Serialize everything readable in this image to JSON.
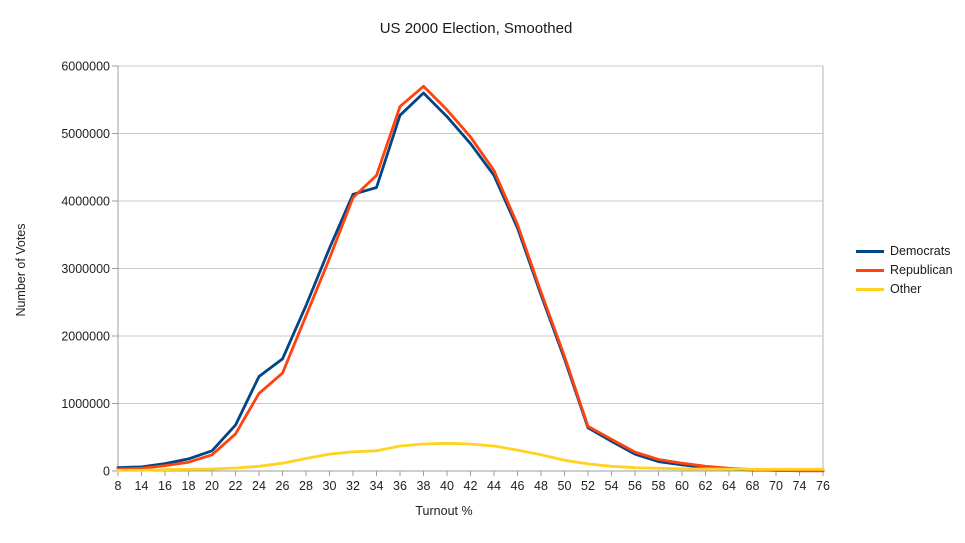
{
  "title": "US 2000 Election, Smoothed",
  "colors": {
    "democrats": "#004586",
    "republican": "#FF420E",
    "other": "#FFD320",
    "gridline": "#c9c9c9",
    "plot_border": "#b3b3b3",
    "axis": "#9e9e9e",
    "tick_text": "#222222",
    "background": "#ffffff"
  },
  "chart_data": {
    "type": "line",
    "title": "US 2000 Election, Smoothed",
    "xlabel": "Turnout %",
    "ylabel": "Number of Votes",
    "ylim": [
      0,
      6000000
    ],
    "y_ticks": [
      0,
      1000000,
      2000000,
      3000000,
      4000000,
      5000000,
      6000000
    ],
    "grid": "horizontal",
    "legend_position": "right",
    "categories": [
      8,
      14,
      16,
      18,
      20,
      22,
      24,
      26,
      28,
      30,
      32,
      34,
      36,
      38,
      40,
      42,
      44,
      46,
      48,
      50,
      52,
      54,
      56,
      58,
      60,
      62,
      64,
      68,
      70,
      74,
      76
    ],
    "series": [
      {
        "name": "Democrats",
        "color": "#004586",
        "values": [
          50000,
          60000,
          110000,
          180000,
          300000,
          680000,
          1400000,
          1660000,
          2450000,
          3300000,
          4100000,
          4200000,
          5270000,
          5600000,
          5250000,
          4850000,
          4380000,
          3600000,
          2610000,
          1660000,
          640000,
          440000,
          250000,
          140000,
          90000,
          50000,
          30000,
          15000,
          10000,
          5000,
          5000
        ]
      },
      {
        "name": "Republican",
        "color": "#FF420E",
        "values": [
          30000,
          40000,
          80000,
          130000,
          240000,
          550000,
          1150000,
          1450000,
          2300000,
          3150000,
          4050000,
          4380000,
          5400000,
          5700000,
          5350000,
          4950000,
          4450000,
          3650000,
          2650000,
          1700000,
          660000,
          470000,
          280000,
          170000,
          115000,
          70000,
          40000,
          20000,
          10000,
          5000,
          5000
        ]
      },
      {
        "name": "Other",
        "color": "#FFD320",
        "values": [
          10000,
          10000,
          20000,
          25000,
          30000,
          45000,
          70000,
          115000,
          185000,
          250000,
          285000,
          300000,
          370000,
          400000,
          410000,
          400000,
          370000,
          310000,
          240000,
          160000,
          105000,
          70000,
          50000,
          40000,
          32000,
          30000,
          28000,
          25000,
          25000,
          25000,
          25000
        ]
      }
    ]
  }
}
